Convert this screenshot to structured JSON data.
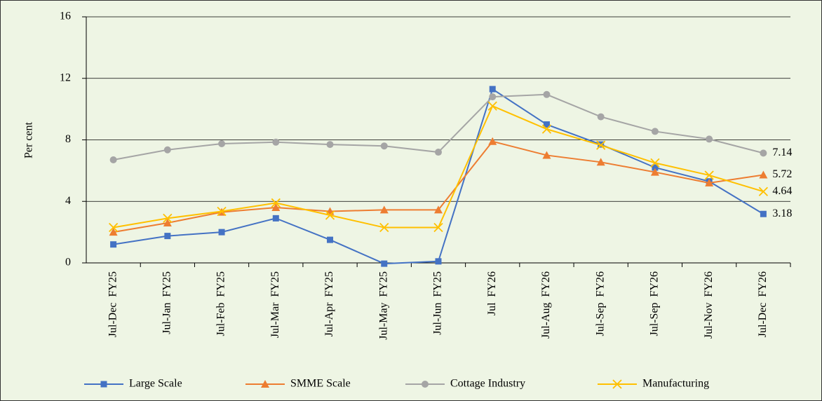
{
  "chart_data": {
    "type": "line",
    "y_label": "Per cent",
    "categories": [
      "Jul-Dec  FY25",
      "Jul-Jan  FY25",
      "Jul-Feb  FY25",
      "Jul-Mar  FY25",
      "Jul-Apr  FY25",
      "Jul-May  FY25",
      "Jul-Jun  FY25",
      "Jul  FY26",
      "Jul-Aug  FY26",
      "Jul-Sep  FY26",
      "Jul-Sep  FY26",
      "Jul-Nov  FY26",
      "Jul-Dec  FY26"
    ],
    "series": [
      {
        "name": "Large Scale",
        "color": "#4472c4",
        "marker": "square",
        "values": [
          1.2,
          1.75,
          2.0,
          2.9,
          1.5,
          -0.05,
          0.1,
          11.3,
          9.0,
          7.7,
          6.2,
          5.3,
          3.18
        ]
      },
      {
        "name": "SMME Scale",
        "color": "#ed7d31",
        "marker": "triangle",
        "values": [
          2.0,
          2.6,
          3.3,
          3.6,
          3.35,
          3.45,
          3.45,
          7.9,
          7.0,
          6.55,
          5.9,
          5.2,
          5.72
        ]
      },
      {
        "name": "Cottage Industry",
        "color": "#a5a5a5",
        "marker": "circle",
        "values": [
          6.7,
          7.35,
          7.75,
          7.85,
          7.7,
          7.6,
          7.2,
          10.8,
          10.95,
          9.5,
          8.55,
          8.05,
          7.14
        ]
      },
      {
        "name": "Manufacturing",
        "color": "#ffc000",
        "marker": "x",
        "values": [
          2.3,
          2.9,
          3.35,
          3.9,
          3.1,
          2.3,
          2.3,
          10.2,
          8.7,
          7.65,
          6.5,
          5.7,
          4.64
        ]
      }
    ],
    "ylim": [
      0,
      16
    ],
    "yticks": [
      0,
      4,
      8,
      12,
      16
    ],
    "grid": true,
    "legend": "bottom"
  }
}
